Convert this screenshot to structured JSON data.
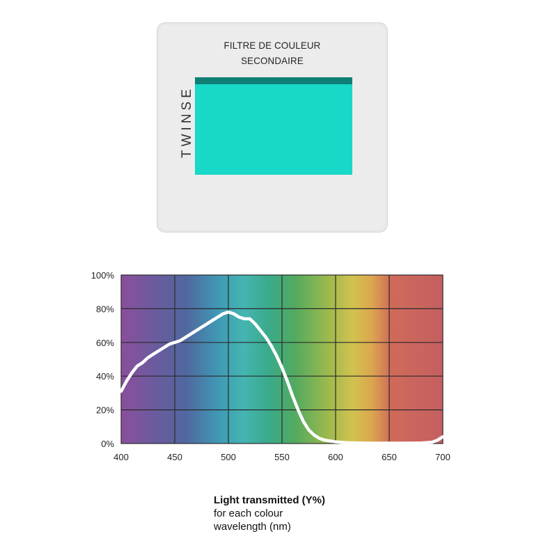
{
  "slide": {
    "line1": "FILTRE DE COULEUR",
    "line2": "SECONDAIRE",
    "brand": "TWINSE",
    "window_color": "#18d9c7"
  },
  "chart_data": {
    "type": "line",
    "title": "",
    "xlabel": "",
    "ylabel": "",
    "xlim": [
      400,
      700
    ],
    "ylim": [
      0,
      100
    ],
    "x_ticks": [
      "400",
      "450",
      "500",
      "550",
      "600",
      "650",
      "700"
    ],
    "y_ticks": [
      "0%",
      "20%",
      "40%",
      "60%",
      "80%",
      "100%"
    ],
    "grid": true,
    "background": "visible spectrum gradient (violet to red)",
    "line_color": "#ffffff",
    "series": [
      {
        "x": [
          400,
          405,
          410,
          415,
          420,
          425,
          430,
          435,
          440,
          445,
          450,
          455,
          460,
          465,
          470,
          475,
          480,
          485,
          490,
          495,
          500,
          505,
          510,
          515,
          520,
          525,
          530,
          535,
          540,
          545,
          550,
          555,
          560,
          565,
          570,
          575,
          580,
          585,
          590,
          595,
          600,
          610,
          620,
          630,
          640,
          650,
          660,
          670,
          680,
          690,
          695,
          700
        ],
        "y": [
          31,
          37,
          42,
          46,
          48,
          51,
          53,
          55,
          57,
          59,
          60,
          61,
          63,
          65,
          67,
          69,
          71,
          73,
          75,
          77,
          78,
          77,
          75,
          74,
          74,
          71,
          67,
          63,
          58,
          52,
          45,
          37,
          28,
          20,
          13,
          8,
          5,
          3,
          2,
          1.5,
          1,
          0.5,
          0.3,
          0.2,
          0.2,
          0.2,
          0.2,
          0.2,
          0.3,
          0.8,
          2,
          4
        ]
      }
    ]
  },
  "caption": {
    "title": "Light transmitted (Y%)",
    "line2": "for each colour",
    "line3": "wavelength (nm)"
  }
}
